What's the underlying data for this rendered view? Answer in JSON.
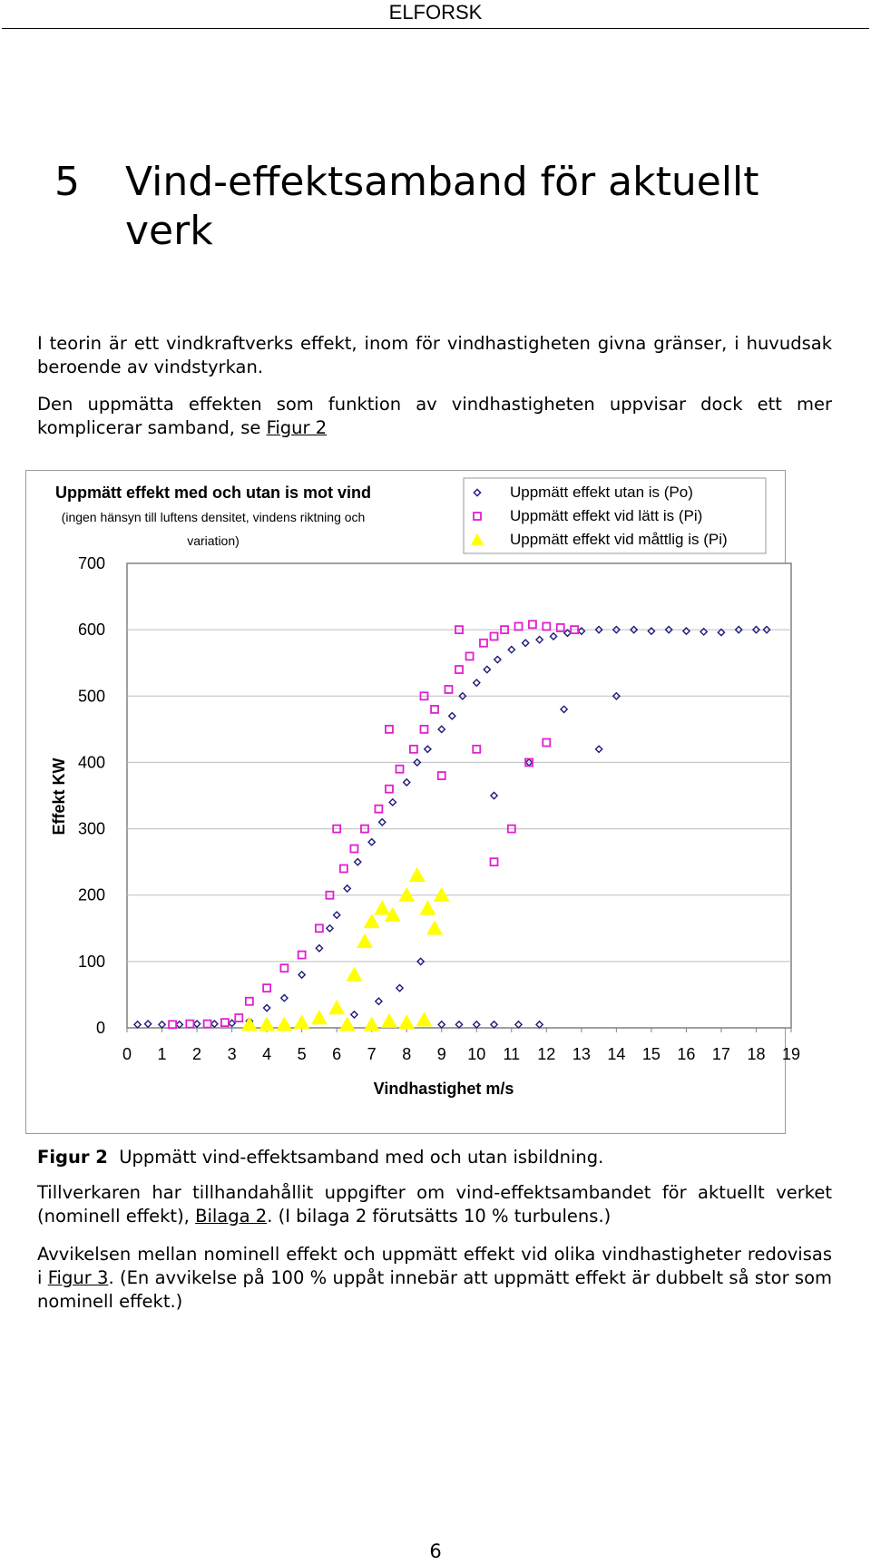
{
  "header": {
    "text": "ELFORSK"
  },
  "section": {
    "number": "5",
    "title": "Vind-effektsamband för aktuellt verk"
  },
  "paragraphs": {
    "p1": "I teorin är ett vindkraftverks effekt, inom för vindhastigheten givna gränser, i huvudsak beroende av vindstyrkan.",
    "p2_text": "Den uppmätta effekten som funktion av vindhastigheten uppvisar dock ett mer komplicerar samband, se ",
    "p2_link": "Figur 2",
    "p3_text1": "Tillverkaren har tillhandahållit uppgifter om vind-effektsambandet för aktuellt verket (nominell effekt), ",
    "p3_link": "Bilaga 2",
    "p3_text2": ". (I bilaga 2 förutsätts 10 % turbulens.)",
    "p4_text1": "Avvikelsen mellan nominell effekt och uppmätt effekt vid olika vindhastigheter redovisas i ",
    "p4_link": "Figur 3",
    "p4_text2": ". (En avvikelse på 100 % uppåt innebär att uppmätt effekt är dubbelt så stor som nominell effekt.)"
  },
  "figure": {
    "caption_label": "Figur 2",
    "caption_text": "Uppmätt vind-effektsamband med och utan isbildning."
  },
  "chart_data": {
    "type": "scatter",
    "title": "Uppmätt effekt med och utan is mot vind",
    "subtitle": "(ingen hänsyn till luftens densitet, vindens riktning och variation)",
    "xlabel": "Vindhastighet m/s",
    "ylabel": "Effekt KW",
    "xlim": [
      0,
      19
    ],
    "ylim": [
      0,
      700
    ],
    "x_ticks": [
      "0",
      "1",
      "2",
      "3",
      "4",
      "5",
      "6",
      "7",
      "8",
      "9",
      "10",
      "11",
      "12",
      "13",
      "14",
      "15",
      "16",
      "17",
      "18",
      "19"
    ],
    "y_ticks": [
      "0",
      "100",
      "200",
      "300",
      "400",
      "500",
      "600",
      "700"
    ],
    "grid": "horizontal",
    "legend_position": "top-right",
    "series": [
      {
        "name": "Uppmätt effekt utan is (Po)",
        "marker": "diamond",
        "color": "#1a1a7a",
        "points": [
          [
            0.3,
            5
          ],
          [
            0.6,
            6
          ],
          [
            1.0,
            5
          ],
          [
            1.5,
            5
          ],
          [
            2.0,
            6
          ],
          [
            2.5,
            6
          ],
          [
            3.0,
            7
          ],
          [
            3.5,
            10
          ],
          [
            4.0,
            30
          ],
          [
            4.5,
            45
          ],
          [
            5.0,
            80
          ],
          [
            5.5,
            120
          ],
          [
            5.8,
            150
          ],
          [
            6.0,
            170
          ],
          [
            6.3,
            210
          ],
          [
            6.6,
            250
          ],
          [
            7.0,
            280
          ],
          [
            7.3,
            310
          ],
          [
            7.6,
            340
          ],
          [
            8.0,
            370
          ],
          [
            8.3,
            400
          ],
          [
            8.6,
            420
          ],
          [
            9.0,
            450
          ],
          [
            9.3,
            470
          ],
          [
            9.6,
            500
          ],
          [
            10.0,
            520
          ],
          [
            10.3,
            540
          ],
          [
            10.6,
            555
          ],
          [
            11.0,
            570
          ],
          [
            11.4,
            580
          ],
          [
            11.8,
            585
          ],
          [
            12.2,
            590
          ],
          [
            12.6,
            595
          ],
          [
            13.0,
            598
          ],
          [
            13.5,
            600
          ],
          [
            14.0,
            600
          ],
          [
            14.5,
            600
          ],
          [
            15.0,
            598
          ],
          [
            15.5,
            600
          ],
          [
            16.0,
            598
          ],
          [
            16.5,
            597
          ],
          [
            17.0,
            596
          ],
          [
            17.5,
            600
          ],
          [
            18.0,
            600
          ],
          [
            18.3,
            600
          ],
          [
            9.0,
            5
          ],
          [
            9.5,
            5
          ],
          [
            10.0,
            5
          ],
          [
            10.5,
            5
          ],
          [
            11.2,
            5
          ],
          [
            11.8,
            5
          ],
          [
            6.5,
            20
          ],
          [
            7.2,
            40
          ],
          [
            7.8,
            60
          ],
          [
            8.4,
            100
          ],
          [
            12.5,
            480
          ],
          [
            13.5,
            420
          ],
          [
            14.0,
            500
          ],
          [
            11.5,
            400
          ],
          [
            10.5,
            350
          ]
        ]
      },
      {
        "name": "Uppmätt effekt vid lätt is (Pi)",
        "marker": "square",
        "color": "#e020d0",
        "points": [
          [
            1.3,
            5
          ],
          [
            1.8,
            6
          ],
          [
            2.3,
            6
          ],
          [
            2.8,
            8
          ],
          [
            3.2,
            15
          ],
          [
            3.5,
            40
          ],
          [
            4.0,
            60
          ],
          [
            4.5,
            90
          ],
          [
            5.0,
            110
          ],
          [
            5.5,
            150
          ],
          [
            5.8,
            200
          ],
          [
            6.2,
            240
          ],
          [
            6.5,
            270
          ],
          [
            6.8,
            300
          ],
          [
            7.2,
            330
          ],
          [
            7.5,
            360
          ],
          [
            7.8,
            390
          ],
          [
            8.2,
            420
          ],
          [
            8.5,
            450
          ],
          [
            8.8,
            480
          ],
          [
            9.2,
            510
          ],
          [
            9.5,
            540
          ],
          [
            9.8,
            560
          ],
          [
            10.2,
            580
          ],
          [
            10.5,
            590
          ],
          [
            10.8,
            600
          ],
          [
            11.2,
            605
          ],
          [
            11.6,
            608
          ],
          [
            12.0,
            605
          ],
          [
            12.4,
            603
          ],
          [
            12.8,
            600
          ],
          [
            9.5,
            600
          ],
          [
            8.5,
            500
          ],
          [
            7.5,
            450
          ],
          [
            6.0,
            300
          ],
          [
            10.5,
            250
          ],
          [
            11.0,
            300
          ],
          [
            11.5,
            400
          ],
          [
            12.0,
            430
          ],
          [
            9.0,
            380
          ],
          [
            10.0,
            420
          ]
        ]
      },
      {
        "name": "Uppmätt effekt vid måttlig is (Pi)",
        "marker": "triangle",
        "color": "#ffff00",
        "points": [
          [
            3.5,
            5
          ],
          [
            4.0,
            5
          ],
          [
            4.5,
            5
          ],
          [
            5.0,
            8
          ],
          [
            5.5,
            15
          ],
          [
            6.0,
            30
          ],
          [
            6.5,
            80
          ],
          [
            6.8,
            130
          ],
          [
            7.0,
            160
          ],
          [
            7.3,
            180
          ],
          [
            7.6,
            170
          ],
          [
            8.0,
            200
          ],
          [
            8.3,
            230
          ],
          [
            8.6,
            180
          ],
          [
            8.8,
            150
          ],
          [
            9.0,
            200
          ],
          [
            7.5,
            10
          ],
          [
            8.0,
            8
          ],
          [
            8.5,
            12
          ],
          [
            6.3,
            5
          ],
          [
            7.0,
            5
          ]
        ]
      }
    ]
  }
}
